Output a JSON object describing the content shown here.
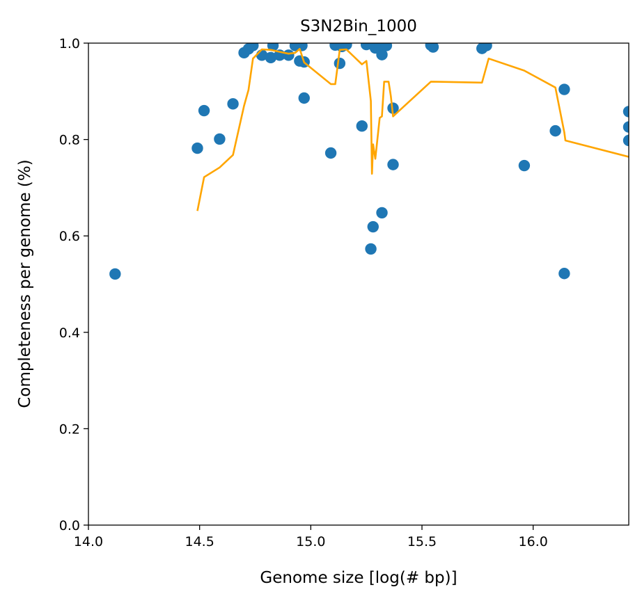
{
  "chart_data": {
    "type": "scatter",
    "title": "S3N2Bin_1000",
    "xlabel": "Genome size [log(# bp)]",
    "ylabel": "Completeness per genome (%)",
    "xlim": [
      14.0,
      16.43
    ],
    "ylim": [
      0.0,
      1.0
    ],
    "xticks": [
      "14.0",
      "14.5",
      "15.0",
      "15.5",
      "16.0"
    ],
    "yticks": [
      "0.0",
      "0.2",
      "0.4",
      "0.6",
      "0.8",
      "1.0"
    ],
    "grid": false,
    "series": [
      {
        "kind": "scatter",
        "color": "#1f77b4",
        "points": [
          [
            14.12,
            0.521
          ],
          [
            14.49,
            0.782
          ],
          [
            14.52,
            0.86
          ],
          [
            14.59,
            0.801
          ],
          [
            14.65,
            0.874
          ],
          [
            14.7,
            0.98
          ],
          [
            14.72,
            0.988
          ],
          [
            14.74,
            0.995
          ],
          [
            14.78,
            0.975
          ],
          [
            14.82,
            0.97
          ],
          [
            14.83,
            0.995
          ],
          [
            14.86,
            0.975
          ],
          [
            14.9,
            0.975
          ],
          [
            14.93,
            0.995
          ],
          [
            14.95,
            0.963
          ],
          [
            14.96,
            0.995
          ],
          [
            14.97,
            0.961
          ],
          [
            14.97,
            0.886
          ],
          [
            15.09,
            0.772
          ],
          [
            15.11,
            0.996
          ],
          [
            15.13,
            0.958
          ],
          [
            15.14,
            0.993
          ],
          [
            15.16,
            0.997
          ],
          [
            15.23,
            0.828
          ],
          [
            15.25,
            0.997
          ],
          [
            15.27,
            0.573
          ],
          [
            15.28,
            0.619
          ],
          [
            15.29,
            0.99
          ],
          [
            15.31,
            0.995
          ],
          [
            15.32,
            0.648
          ],
          [
            15.32,
            0.976
          ],
          [
            15.34,
            0.995
          ],
          [
            15.37,
            0.865
          ],
          [
            15.37,
            0.748
          ],
          [
            15.54,
            0.996
          ],
          [
            15.55,
            0.992
          ],
          [
            15.77,
            0.989
          ],
          [
            15.79,
            0.995
          ],
          [
            15.96,
            0.746
          ],
          [
            16.1,
            0.818
          ],
          [
            16.14,
            0.904
          ],
          [
            16.14,
            0.522
          ],
          [
            16.43,
            0.858
          ],
          [
            16.43,
            0.826
          ],
          [
            16.43,
            0.798
          ]
        ]
      },
      {
        "kind": "line",
        "color": "#ffa500",
        "points": [
          [
            14.49,
            0.652
          ],
          [
            14.52,
            0.722
          ],
          [
            14.59,
            0.742
          ],
          [
            14.65,
            0.768
          ],
          [
            14.7,
            0.87
          ],
          [
            14.72,
            0.903
          ],
          [
            14.74,
            0.968
          ],
          [
            14.78,
            0.987
          ],
          [
            14.82,
            0.986
          ],
          [
            14.86,
            0.982
          ],
          [
            14.9,
            0.978
          ],
          [
            14.93,
            0.98
          ],
          [
            14.95,
            0.988
          ],
          [
            14.97,
            0.96
          ],
          [
            15.09,
            0.915
          ],
          [
            15.11,
            0.915
          ],
          [
            15.13,
            0.986
          ],
          [
            15.16,
            0.987
          ],
          [
            15.23,
            0.956
          ],
          [
            15.25,
            0.963
          ],
          [
            15.27,
            0.88
          ],
          [
            15.275,
            0.729
          ],
          [
            15.28,
            0.79
          ],
          [
            15.29,
            0.76
          ],
          [
            15.31,
            0.845
          ],
          [
            15.32,
            0.848
          ],
          [
            15.33,
            0.92
          ],
          [
            15.35,
            0.92
          ],
          [
            15.36,
            0.89
          ],
          [
            15.37,
            0.848
          ],
          [
            15.54,
            0.92
          ],
          [
            15.77,
            0.918
          ],
          [
            15.8,
            0.968
          ],
          [
            15.96,
            0.943
          ],
          [
            16.1,
            0.908
          ],
          [
            16.14,
            0.815
          ],
          [
            16.145,
            0.798
          ],
          [
            16.43,
            0.764
          ]
        ]
      }
    ]
  }
}
